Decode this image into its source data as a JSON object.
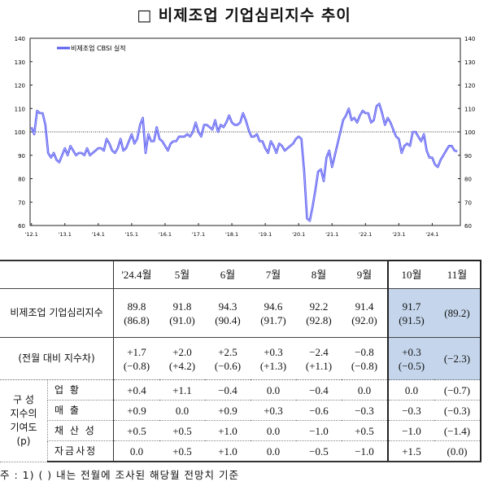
{
  "title": "□ 비제조업 기업심리지수 추이",
  "chart_data": {
    "type": "line",
    "legend": "비제조업 CBSI 실적",
    "legend_position": "top-left",
    "ylim": [
      60,
      140
    ],
    "yticks": [
      60,
      70,
      80,
      90,
      100,
      110,
      120,
      130,
      140
    ],
    "xtick_labels": [
      "'12.1",
      "'13.1",
      "'14.1",
      "'15.1",
      "'16.1",
      "'17.1",
      "'18.1",
      "'19.1",
      "'20.1",
      "'21.1",
      "'22.1",
      "'23.1",
      "'24.1"
    ],
    "reference_line": 100,
    "start": "2012-01",
    "frequency": "monthly",
    "color": "#5a5cf0",
    "series": [
      {
        "values": [
          102,
          99,
          109,
          108,
          108,
          103,
          91,
          89,
          91,
          88,
          87,
          90,
          93,
          90,
          94,
          92,
          90,
          91,
          91,
          90,
          93,
          90,
          91,
          92,
          93,
          93,
          92,
          97,
          95,
          92,
          91,
          93,
          97,
          92,
          93,
          96,
          99,
          95,
          97,
          103,
          106,
          91,
          99,
          96,
          96,
          102,
          97,
          96,
          94,
          92,
          95,
          96,
          96,
          98,
          98,
          98,
          99,
          98,
          100,
          104,
          100,
          98,
          103,
          103,
          102,
          101,
          105,
          100,
          103,
          102,
          104,
          107,
          104,
          103,
          103,
          104,
          108,
          105,
          101,
          98,
          98,
          99,
          96,
          96,
          93,
          91,
          96,
          94,
          91,
          95,
          94,
          92,
          93,
          94,
          95,
          97,
          98,
          97,
          83,
          63,
          62,
          68,
          75,
          83,
          84,
          79,
          89,
          92,
          85,
          90,
          95,
          100,
          105,
          107,
          110,
          105,
          106,
          104,
          107,
          109,
          108,
          108,
          104,
          105,
          111,
          112,
          108,
          103,
          106,
          104,
          101,
          98,
          97,
          91,
          94,
          95,
          94,
          100,
          100,
          98,
          96,
          99,
          92,
          89,
          89,
          86,
          85,
          88,
          90,
          92,
          94,
          94,
          92,
          91.7
        ]
      }
    ]
  },
  "table": {
    "headers": [
      "'24.4월",
      "5월",
      "6월",
      "7월",
      "8월",
      "9월",
      "10월",
      "11월"
    ],
    "cbsi_label": "비제조업 기업심리지수",
    "cbsi": [
      "89.8",
      "91.8",
      "94.3",
      "94.6",
      "92.2",
      "91.4",
      "91.7",
      ""
    ],
    "cbsi_forecast": [
      "(86.8)",
      "(91.0)",
      "(90.4)",
      "(91.7)",
      "(92.8)",
      "(92.0)",
      "(91.5)",
      "(89.2)"
    ],
    "diff_label": "(전월 대비 지수차)",
    "diff": [
      "+1.7",
      "+2.0",
      "+2.5",
      "+0.3",
      "−2.4",
      "−0.8",
      "+0.3",
      ""
    ],
    "diff_forecast": [
      "(−0.8)",
      "(+4.2)",
      "(−0.6)",
      "(+1.3)",
      "(+1.1)",
      "(−0.8)",
      "(−0.5)",
      "(−2.3)"
    ],
    "group_label": [
      "구 성",
      "지수의",
      "기여도",
      "(p)"
    ],
    "components": [
      {
        "label": "업 황",
        "values": [
          "+0.4",
          "+1.1",
          "−0.4",
          "0.0",
          "−0.4",
          "0.0",
          "0.0",
          "(−0.7)"
        ]
      },
      {
        "label": "매 출",
        "values": [
          "+0.9",
          "0.0",
          "+0.9",
          "+0.3",
          "−0.6",
          "−0.3",
          "−0.3",
          "(−0.3)"
        ]
      },
      {
        "label": "채 산 성",
        "values": [
          "+0.5",
          "+0.5",
          "+1.0",
          "0.0",
          "−1.0",
          "+0.5",
          "−1.0",
          "(−1.4)"
        ]
      },
      {
        "label": "자금사정",
        "values": [
          "0.0",
          "+0.5",
          "+1.0",
          "0.0",
          "−0.5",
          "−1.0",
          "+1.5",
          "(0.0)"
        ]
      }
    ]
  },
  "note": "주 : 1) (    ) 내는 전월에 조사된 해당월 전망치 기준"
}
